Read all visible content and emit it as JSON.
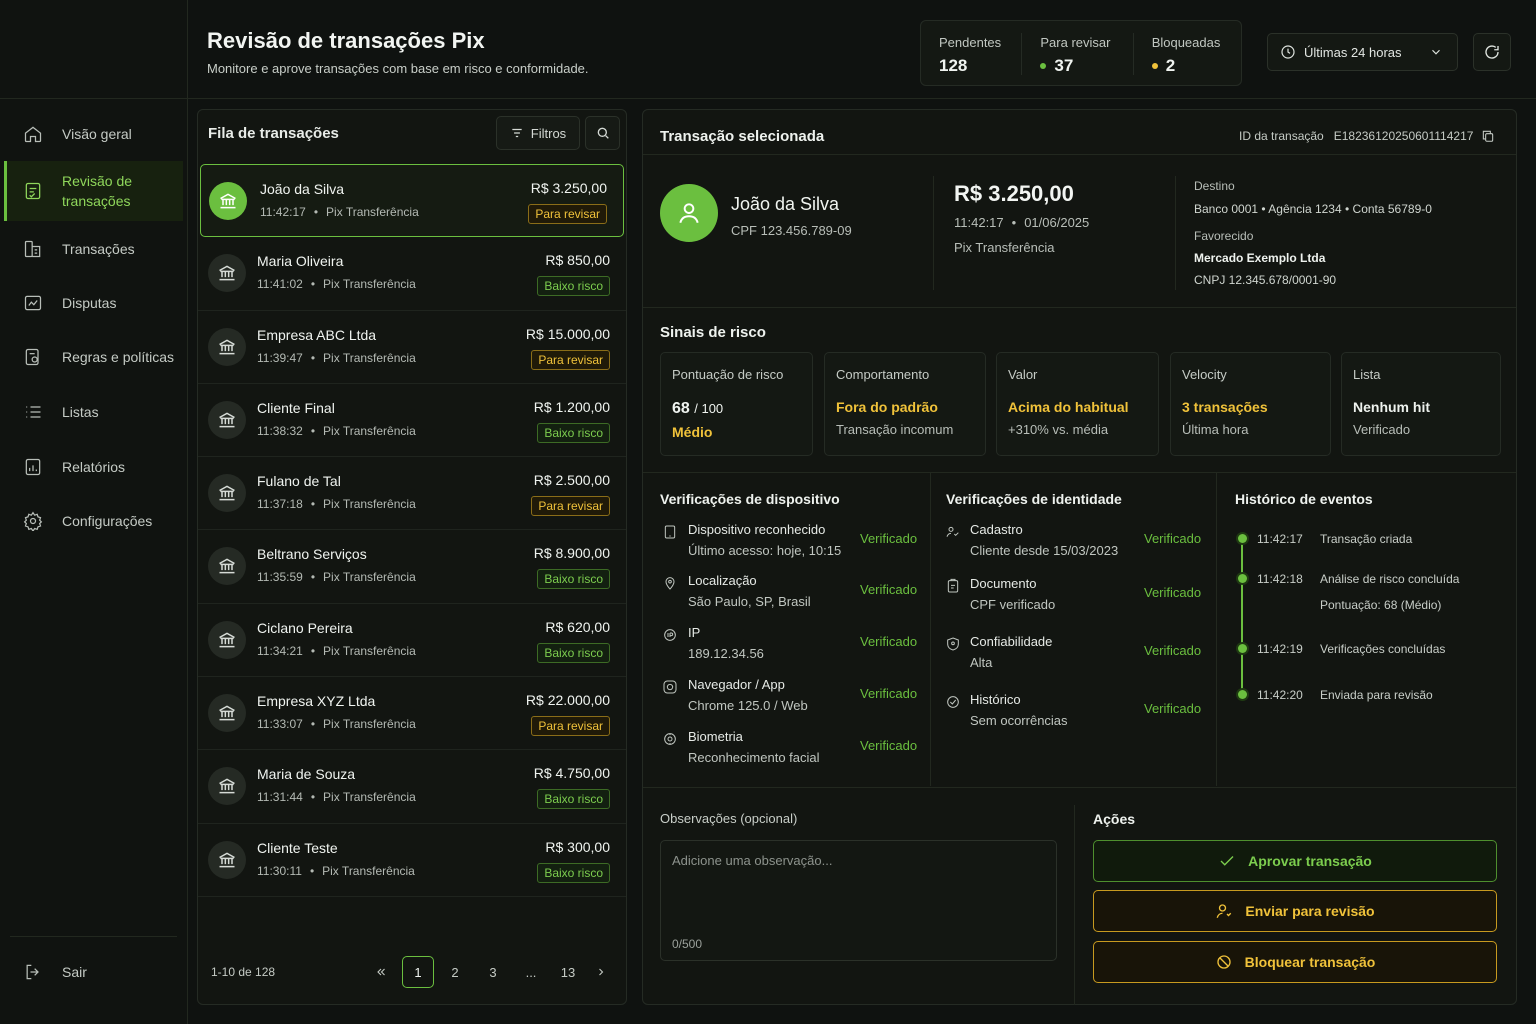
{
  "sidebar": {
    "items": [
      {
        "label": "Visão geral",
        "icon": "home-icon"
      },
      {
        "label": "Revisão de transações",
        "icon": "review-icon"
      },
      {
        "label": "Transações",
        "icon": "transactions-icon"
      },
      {
        "label": "Disputas",
        "icon": "disputes-icon"
      },
      {
        "label": "Regras e políticas",
        "icon": "rules-icon"
      },
      {
        "label": "Listas",
        "icon": "list-icon"
      },
      {
        "label": "Relatórios",
        "icon": "reports-icon"
      },
      {
        "label": "Configurações",
        "icon": "gear-icon"
      }
    ],
    "logout": "Sair"
  },
  "header": {
    "title": "Revisão de transações Pix",
    "subtitle": "Monitore e aprove transações com base em risco e conformidade.",
    "stats": [
      {
        "label": "Pendentes",
        "value": "128",
        "dot": ""
      },
      {
        "label": "Para revisar",
        "value": "37",
        "dot": "#6bbf3f"
      },
      {
        "label": "Bloqueadas",
        "value": "2",
        "dot": "#f0c23a"
      }
    ],
    "time_range": "Últimas 24 horas"
  },
  "queue": {
    "title": "Fila de transações",
    "filter_label": "Filtros",
    "rows": [
      {
        "name": "João da Silva",
        "time": "11:42:17",
        "type": "Pix Transferência",
        "amount": "R$ 3.250,00",
        "badge": "Para revisar",
        "kind": "rev"
      },
      {
        "name": "Maria Oliveira",
        "time": "11:41:02",
        "type": "Pix Transferência",
        "amount": "R$ 850,00",
        "badge": "Baixo risco",
        "kind": "low"
      },
      {
        "name": "Empresa ABC Ltda",
        "time": "11:39:47",
        "type": "Pix Transferência",
        "amount": "R$ 15.000,00",
        "badge": "Para revisar",
        "kind": "rev"
      },
      {
        "name": "Cliente Final",
        "time": "11:38:32",
        "type": "Pix Transferência",
        "amount": "R$ 1.200,00",
        "badge": "Baixo risco",
        "kind": "low"
      },
      {
        "name": "Fulano de Tal",
        "time": "11:37:18",
        "type": "Pix Transferência",
        "amount": "R$ 2.500,00",
        "badge": "Para revisar",
        "kind": "rev"
      },
      {
        "name": "Beltrano Serviços",
        "time": "11:35:59",
        "type": "Pix Transferência",
        "amount": "R$ 8.900,00",
        "badge": "Baixo risco",
        "kind": "low"
      },
      {
        "name": "Ciclano Pereira",
        "time": "11:34:21",
        "type": "Pix Transferência",
        "amount": "R$ 620,00",
        "badge": "Baixo risco",
        "kind": "low"
      },
      {
        "name": "Empresa XYZ Ltda",
        "time": "11:33:07",
        "type": "Pix Transferência",
        "amount": "R$ 22.000,00",
        "badge": "Para revisar",
        "kind": "rev"
      },
      {
        "name": "Maria de Souza",
        "time": "11:31:44",
        "type": "Pix Transferência",
        "amount": "R$ 4.750,00",
        "badge": "Baixo risco",
        "kind": "low"
      },
      {
        "name": "Cliente Teste",
        "time": "11:30:11",
        "type": "Pix Transferência",
        "amount": "R$ 300,00",
        "badge": "Baixo risco",
        "kind": "low"
      }
    ],
    "pagination": {
      "range": "1-10 de 128",
      "pages": [
        "1",
        "2",
        "3",
        "...",
        "13"
      ],
      "current": "1"
    }
  },
  "detail": {
    "title": "Transação selecionada",
    "id_label": "ID da transação",
    "id_value": "E18236120250601114217",
    "payer": {
      "name": "João da Silva",
      "doc": "CPF  123.456.789-09"
    },
    "amount": "R$ 3.250,00",
    "time": "11:42:17",
    "date": "01/06/2025",
    "type": "Pix Transferência",
    "destino_label": "Destino",
    "destino_value": "Banco 0001 • Agência 1234 • Conta 56789-0",
    "favorecido_label": "Favorecido",
    "favorecido_name": "Mercado Exemplo Ltda",
    "favorecido_doc": "CNPJ  12.345.678/0001-90",
    "risk": {
      "title": "Sinais de risco",
      "score_label": "Pontuação de risco",
      "score_value": "68",
      "score_max": "/ 100",
      "score_level": "Médio",
      "cards": [
        {
          "label": "Comportamento",
          "value": "Fora do padrão",
          "sub": "Transação incomum",
          "color": "yellow"
        },
        {
          "label": "Valor",
          "value": "Acima do habitual",
          "sub": "+310% vs. média",
          "color": "yellow"
        },
        {
          "label": "Velocity",
          "value": "3 transações",
          "sub": "Última hora",
          "color": "yellow"
        },
        {
          "label": "Lista",
          "value": "Nenhum hit",
          "sub": "Verificado",
          "color": "white"
        }
      ]
    },
    "device": {
      "title": "Verificações de dispositivo",
      "items": [
        {
          "label": "Dispositivo reconhecido",
          "sub": "Último acesso: hoje, 10:15",
          "status": "Verificado",
          "icon": "device-icon"
        },
        {
          "label": "Localização",
          "sub": "São Paulo, SP, Brasil",
          "status": "Verificado",
          "icon": "location-icon"
        },
        {
          "label": "IP",
          "sub": "189.12.34.56",
          "status": "Verificado",
          "icon": "ip-icon"
        },
        {
          "label": "Navegador / App",
          "sub": "Chrome 125.0 / Web",
          "status": "Verificado",
          "icon": "browser-icon"
        },
        {
          "label": "Biometria",
          "sub": "Reconhecimento facial",
          "status": "Verificado",
          "icon": "biometry-icon"
        }
      ]
    },
    "identity": {
      "title": "Verificações de identidade",
      "items": [
        {
          "label": "Cadastro",
          "sub": "Cliente desde 15/03/2023",
          "status": "Verificado",
          "icon": "user-check-icon"
        },
        {
          "label": "Documento",
          "sub": "CPF verificado",
          "status": "Verificado",
          "icon": "document-icon"
        },
        {
          "label": "Confiabilidade",
          "sub": "Alta",
          "status": "Verificado",
          "icon": "shield-icon"
        },
        {
          "label": "Histórico",
          "sub": "Sem ocorrências",
          "status": "Verificado",
          "icon": "check-circle-icon"
        }
      ]
    },
    "events": {
      "title": "Histórico de eventos",
      "items": [
        {
          "time": "11:42:17",
          "text": "Transação criada",
          "sub": ""
        },
        {
          "time": "11:42:18",
          "text": "Análise de risco concluída",
          "sub": "Pontuação: 68 (Médio)"
        },
        {
          "time": "11:42:19",
          "text": "Verificações concluídas",
          "sub": ""
        },
        {
          "time": "11:42:20",
          "text": "Enviada para revisão",
          "sub": ""
        }
      ]
    },
    "notes": {
      "label": "Observações (opcional)",
      "placeholder": "Adicione uma observação...",
      "counter": "0/500"
    },
    "actions": {
      "title": "Ações",
      "approve": "Aprovar transação",
      "review": "Enviar para revisão",
      "block": "Bloquear transação"
    }
  },
  "colors": {
    "accent": "#6bbf3f",
    "warning": "#f0c23a",
    "background": "#0f1210"
  }
}
